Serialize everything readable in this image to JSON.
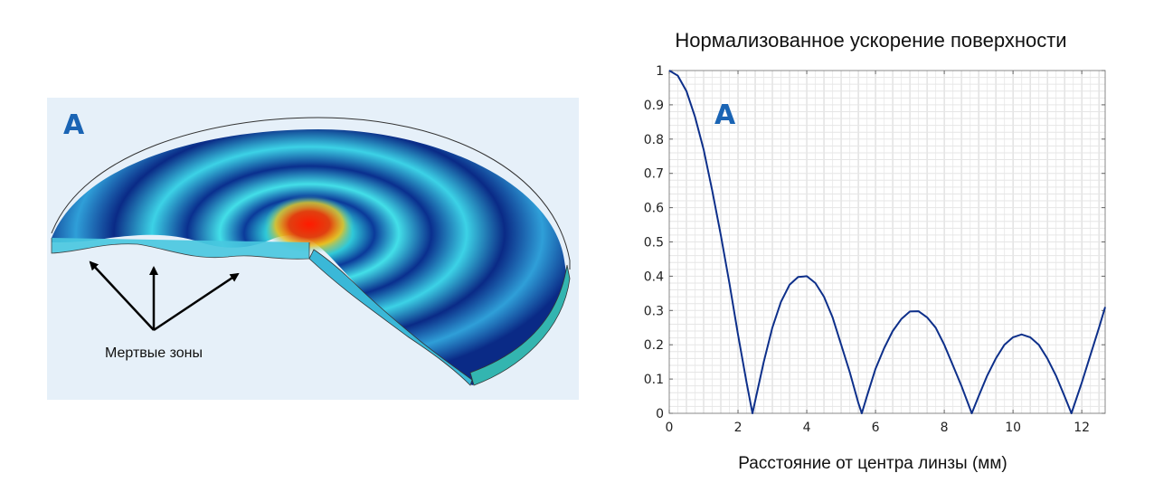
{
  "left_panel": {
    "letter": "A",
    "annotation": "Мертвые зоны"
  },
  "colors": {
    "curve": "#0d2f8a",
    "letter": "#1a64b4",
    "panel_bg": "#e6f0f9",
    "grid": "#dcdcdc"
  },
  "chart_data": {
    "type": "line",
    "title": "Нормализованное ускорение поверхности",
    "xlabel": "Расстояние от центра линзы (мм)",
    "ylabel": "",
    "panel_letter": "A",
    "xlim": [
      0,
      12.68
    ],
    "ylim": [
      0,
      1
    ],
    "grid": true,
    "x_ticks": [
      "0",
      "2",
      "4",
      "6",
      "8",
      "10",
      "12"
    ],
    "y_ticks": [
      "0",
      "0.1",
      "0.2",
      "0.3",
      "0.4",
      "0.5",
      "0.6",
      "0.7",
      "0.8",
      "0.9",
      "1"
    ],
    "series": [
      {
        "name": "normalized acceleration",
        "x": [
          0,
          0.25,
          0.5,
          0.75,
          1,
          1.25,
          1.5,
          1.75,
          2,
          2.25,
          2.42,
          2.75,
          3,
          3.25,
          3.5,
          3.75,
          4,
          4.25,
          4.5,
          4.75,
          5,
          5.25,
          5.5,
          5.6,
          5.75,
          6,
          6.25,
          6.5,
          6.75,
          7,
          7.25,
          7.5,
          7.75,
          8,
          8.25,
          8.5,
          8.8,
          9,
          9.25,
          9.5,
          9.75,
          10,
          10.25,
          10.5,
          10.75,
          11,
          11.25,
          11.5,
          11.7,
          12,
          12.25,
          12.5,
          12.68
        ],
        "y": [
          1,
          0.985,
          0.94,
          0.865,
          0.77,
          0.65,
          0.52,
          0.38,
          0.23,
          0.09,
          0,
          0.15,
          0.25,
          0.325,
          0.375,
          0.398,
          0.4,
          0.38,
          0.34,
          0.28,
          0.2,
          0.12,
          0.03,
          0,
          0.05,
          0.13,
          0.19,
          0.24,
          0.275,
          0.297,
          0.298,
          0.28,
          0.25,
          0.2,
          0.14,
          0.08,
          0,
          0.05,
          0.11,
          0.16,
          0.2,
          0.222,
          0.23,
          0.222,
          0.2,
          0.16,
          0.11,
          0.05,
          0,
          0.09,
          0.17,
          0.25,
          0.31
        ]
      }
    ]
  }
}
